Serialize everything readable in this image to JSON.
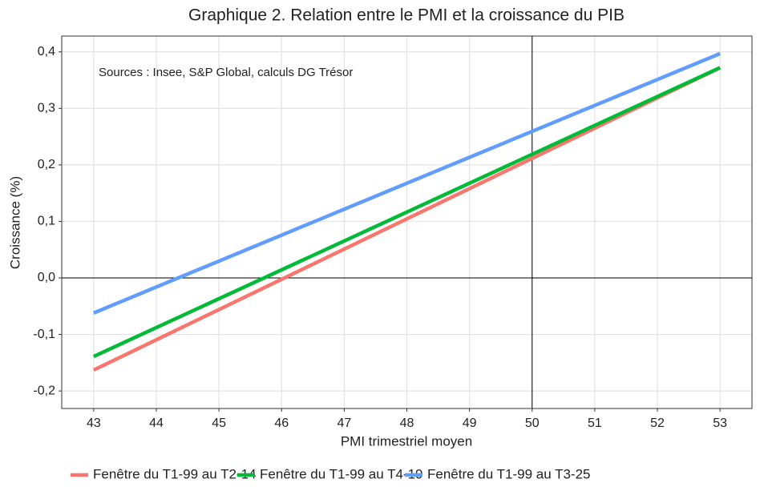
{
  "chart_data": {
    "type": "line",
    "title": "Graphique 2. Relation entre le PMI et la croissance du PIB",
    "annotation": "Sources : Insee, S&P Global, calculs DG Trésor",
    "x_label": "PMI trimestriel moyen",
    "y_label": "Croissance (%)",
    "x": [
      43,
      53
    ],
    "series": [
      {
        "name": "Fenêtre du T1-99 au T2-14",
        "color": "#f8766d",
        "values": [
          -0.163,
          0.372
        ]
      },
      {
        "name": "Fenêtre du T1-99 au T4-19",
        "color": "#00ba38",
        "values": [
          -0.139,
          0.372
        ]
      },
      {
        "name": "Fenêtre du T1-99 au T3-25",
        "color": "#619cff",
        "values": [
          -0.062,
          0.397
        ]
      }
    ],
    "xlim": [
      42.49,
      53.51
    ],
    "ylim": [
      -0.231,
      0.428
    ],
    "xticks": [
      43,
      44,
      45,
      46,
      47,
      48,
      49,
      50,
      51,
      52,
      53
    ],
    "yticks": [
      {
        "value": -0.2,
        "label": "-0,2"
      },
      {
        "value": -0.1,
        "label": "-0,1"
      },
      {
        "value": 0,
        "label": "0,0"
      },
      {
        "value": 0.1,
        "label": "0,1"
      },
      {
        "value": 0.2,
        "label": "0,2"
      },
      {
        "value": 0.3,
        "label": "0,3"
      },
      {
        "value": 0.4,
        "label": "0,4"
      }
    ],
    "hline": 0,
    "vline": 50,
    "grid": true,
    "legend": "bottom"
  }
}
